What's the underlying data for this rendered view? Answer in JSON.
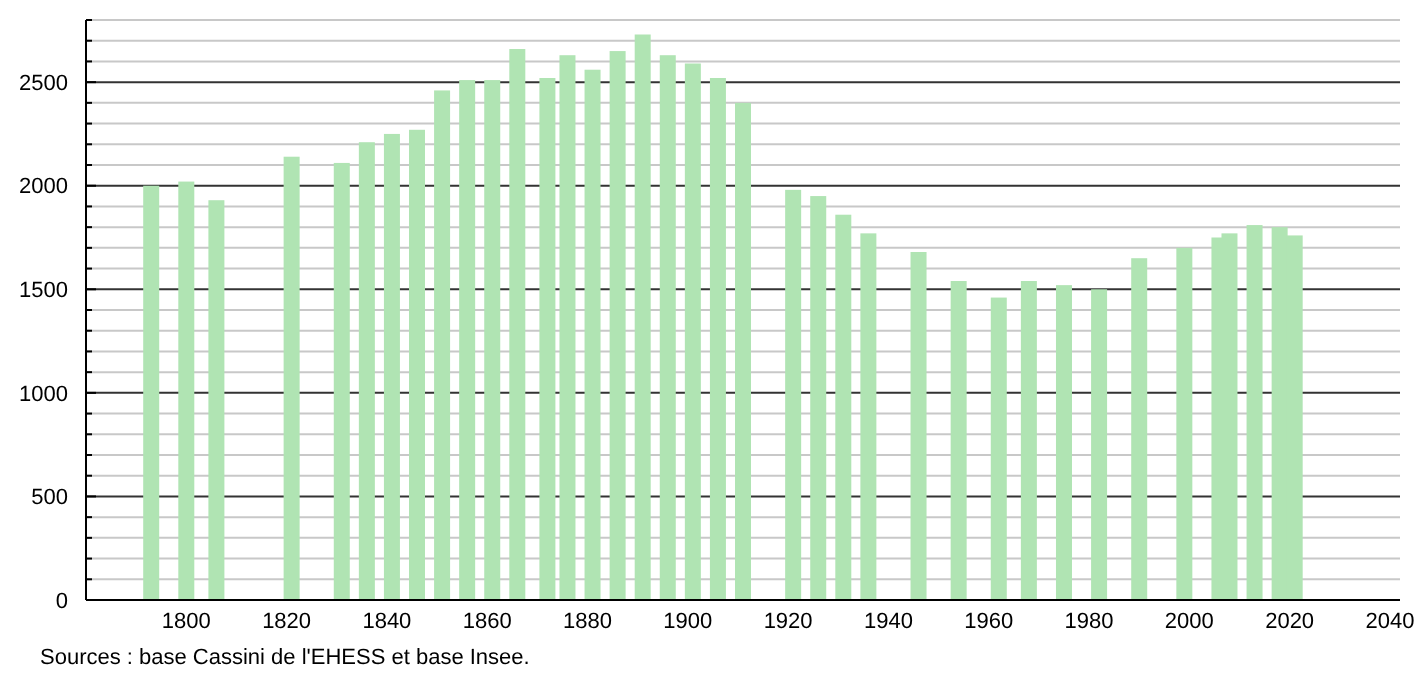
{
  "chart_data": {
    "type": "bar",
    "x": [
      1793,
      1800,
      1806,
      1821,
      1831,
      1836,
      1841,
      1846,
      1851,
      1856,
      1861,
      1866,
      1872,
      1876,
      1881,
      1886,
      1891,
      1896,
      1901,
      1906,
      1911,
      1921,
      1926,
      1931,
      1936,
      1946,
      1954,
      1962,
      1968,
      1975,
      1982,
      1990,
      1999,
      2006,
      2008,
      2013,
      2018,
      2021
    ],
    "values": [
      2000,
      2020,
      1930,
      2140,
      2110,
      2210,
      2250,
      2270,
      2460,
      2510,
      2510,
      2660,
      2520,
      2630,
      2560,
      2650,
      2730,
      2630,
      2590,
      2520,
      2400,
      1980,
      1950,
      1860,
      1770,
      1680,
      1540,
      1460,
      1540,
      1520,
      1500,
      1650,
      1700,
      1750,
      1770,
      1810,
      1800,
      1760
    ],
    "color": "#b0e4b3",
    "xlim": [
      1780,
      2042
    ],
    "xticks": [
      1800,
      1820,
      1840,
      1860,
      1880,
      1900,
      1920,
      1940,
      1960,
      1980,
      2000,
      2020,
      2040
    ],
    "ylim": [
      0,
      2800
    ],
    "yticks": [
      0,
      {
        "value": 100,
        "label": null
      },
      {
        "value": 200,
        "label": null
      },
      {
        "value": 300,
        "label": null
      },
      {
        "value": 400,
        "label": null
      },
      500,
      {
        "value": 600,
        "label": null
      },
      {
        "value": 700,
        "label": null
      },
      {
        "value": 800,
        "label": null
      },
      {
        "value": 900,
        "label": null
      },
      1000,
      {
        "value": 1100,
        "label": null
      },
      {
        "value": 1200,
        "label": null
      },
      {
        "value": 1300,
        "label": null
      },
      {
        "value": 1400,
        "label": null
      },
      1500,
      {
        "value": 1600,
        "label": null
      },
      {
        "value": 1700,
        "label": null
      },
      {
        "value": 1800,
        "label": null
      },
      {
        "value": 1900,
        "label": null
      },
      2000,
      {
        "value": 2100,
        "label": null
      },
      {
        "value": 2200,
        "label": null
      },
      {
        "value": 2300,
        "label": null
      },
      {
        "value": 2400,
        "label": null
      },
      2500,
      {
        "value": 2600,
        "label": null
      },
      {
        "value": 2700,
        "label": null
      },
      {
        "value": 2800,
        "label": null
      }
    ],
    "grid": "y",
    "annotations": [
      "Sources : base Cassini de l'EHESS et base Insee."
    ]
  }
}
